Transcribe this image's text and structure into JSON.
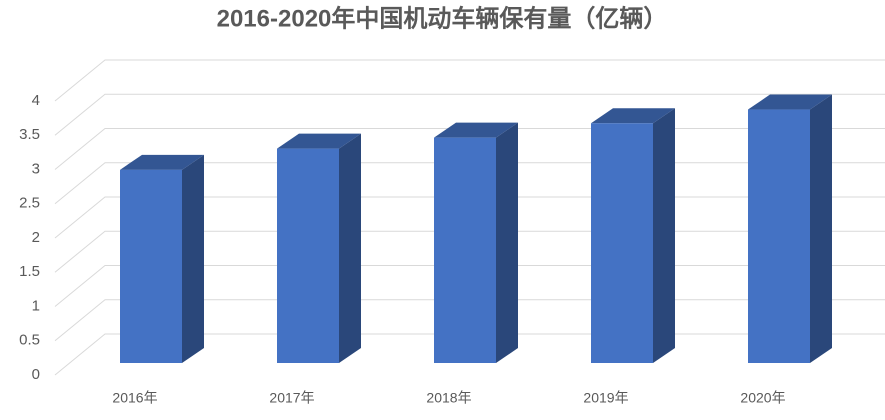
{
  "chart_data": {
    "type": "bar3d",
    "title": "2016-2020年中国机动车辆保有量（亿辆）",
    "categories": [
      "2016年",
      "2017年",
      "2018年",
      "2019年",
      "2020年"
    ],
    "values": [
      2.82,
      3.13,
      3.29,
      3.5,
      3.7
    ],
    "color": "#4472c4",
    "ylim": [
      0,
      4
    ],
    "yticks": [
      0,
      0.5,
      1,
      1.5,
      2,
      2.5,
      3,
      3.5,
      4
    ],
    "grid": true
  }
}
